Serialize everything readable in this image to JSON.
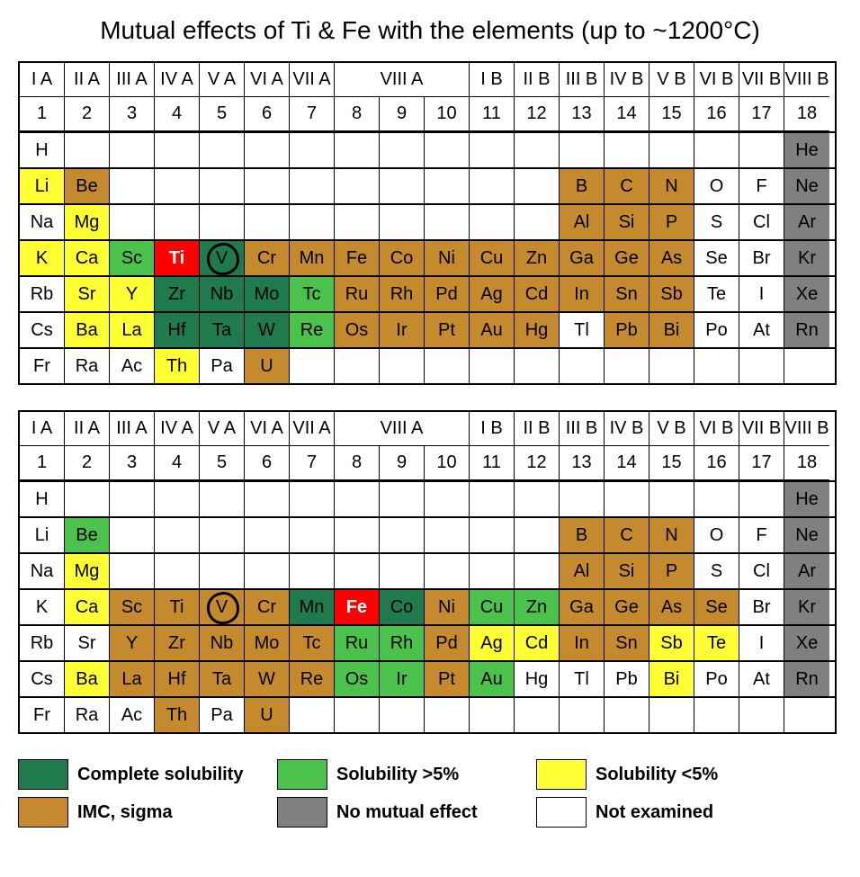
{
  "title": "Mutual effects of Ti & Fe with the elements (up to ~1200°C)",
  "colors": {
    "complete": "#1f7a4d",
    "gt5": "#4bc24b",
    "lt5": "#ffff33",
    "imc": "#c68a2e",
    "none": "#808080",
    "not": "#ffffff",
    "highlight": "#ff0000"
  },
  "group_headers": [
    {
      "label": "I A",
      "span": 1
    },
    {
      "label": "II A",
      "span": 1
    },
    {
      "label": "III A",
      "span": 1
    },
    {
      "label": "IV A",
      "span": 1
    },
    {
      "label": "V A",
      "span": 1
    },
    {
      "label": "VI A",
      "span": 1
    },
    {
      "label": "VII A",
      "span": 1
    },
    {
      "label": "VIII A",
      "span": 3
    },
    {
      "label": "I B",
      "span": 1
    },
    {
      "label": "II B",
      "span": 1
    },
    {
      "label": "III B",
      "span": 1
    },
    {
      "label": "IV B",
      "span": 1
    },
    {
      "label": "V B",
      "span": 1
    },
    {
      "label": "VI B",
      "span": 1
    },
    {
      "label": "VII B",
      "span": 1
    },
    {
      "label": "VIII B",
      "span": 1
    }
  ],
  "group_numbers": [
    "1",
    "2",
    "3",
    "4",
    "5",
    "6",
    "7",
    "8",
    "9",
    "10",
    "11",
    "12",
    "13",
    "14",
    "15",
    "16",
    "17",
    "18"
  ],
  "tables": [
    {
      "name": "ti-table",
      "rows": [
        [
          {
            "s": "H"
          },
          {},
          {},
          {},
          {},
          {},
          {},
          {},
          {},
          {},
          {},
          {},
          {},
          {},
          {},
          {},
          {},
          {
            "s": "He",
            "c": "none"
          }
        ],
        [
          {
            "s": "Li",
            "c": "lt5"
          },
          {
            "s": "Be",
            "c": "imc"
          },
          {},
          {},
          {},
          {},
          {},
          {},
          {},
          {},
          {},
          {},
          {
            "s": "B",
            "c": "imc"
          },
          {
            "s": "C",
            "c": "imc"
          },
          {
            "s": "N",
            "c": "imc"
          },
          {
            "s": "O"
          },
          {
            "s": "F"
          },
          {
            "s": "Ne",
            "c": "none"
          }
        ],
        [
          {
            "s": "Na"
          },
          {
            "s": "Mg",
            "c": "lt5"
          },
          {},
          {},
          {},
          {},
          {},
          {},
          {},
          {},
          {},
          {},
          {
            "s": "Al",
            "c": "imc"
          },
          {
            "s": "Si",
            "c": "imc"
          },
          {
            "s": "P",
            "c": "imc"
          },
          {
            "s": "S"
          },
          {
            "s": "Cl"
          },
          {
            "s": "Ar",
            "c": "none"
          }
        ],
        [
          {
            "s": "K",
            "c": "lt5"
          },
          {
            "s": "Ca",
            "c": "lt5"
          },
          {
            "s": "Sc",
            "c": "gt5"
          },
          {
            "s": "Ti",
            "c": "highlight",
            "hl": true
          },
          {
            "s": "V",
            "c": "complete",
            "circ": true
          },
          {
            "s": "Cr",
            "c": "imc"
          },
          {
            "s": "Mn",
            "c": "imc"
          },
          {
            "s": "Fe",
            "c": "imc"
          },
          {
            "s": "Co",
            "c": "imc"
          },
          {
            "s": "Ni",
            "c": "imc"
          },
          {
            "s": "Cu",
            "c": "imc"
          },
          {
            "s": "Zn",
            "c": "imc"
          },
          {
            "s": "Ga",
            "c": "imc"
          },
          {
            "s": "Ge",
            "c": "imc"
          },
          {
            "s": "As",
            "c": "imc"
          },
          {
            "s": "Se"
          },
          {
            "s": "Br"
          },
          {
            "s": "Kr",
            "c": "none"
          }
        ],
        [
          {
            "s": "Rb"
          },
          {
            "s": "Sr",
            "c": "lt5"
          },
          {
            "s": "Y",
            "c": "lt5"
          },
          {
            "s": "Zr",
            "c": "complete"
          },
          {
            "s": "Nb",
            "c": "complete"
          },
          {
            "s": "Mo",
            "c": "complete"
          },
          {
            "s": "Tc",
            "c": "gt5"
          },
          {
            "s": "Ru",
            "c": "imc"
          },
          {
            "s": "Rh",
            "c": "imc"
          },
          {
            "s": "Pd",
            "c": "imc"
          },
          {
            "s": "Ag",
            "c": "imc"
          },
          {
            "s": "Cd",
            "c": "imc"
          },
          {
            "s": "In",
            "c": "imc"
          },
          {
            "s": "Sn",
            "c": "imc"
          },
          {
            "s": "Sb",
            "c": "imc"
          },
          {
            "s": "Te"
          },
          {
            "s": "I"
          },
          {
            "s": "Xe",
            "c": "none"
          }
        ],
        [
          {
            "s": "Cs"
          },
          {
            "s": "Ba",
            "c": "lt5"
          },
          {
            "s": "La",
            "c": "lt5"
          },
          {
            "s": "Hf",
            "c": "complete"
          },
          {
            "s": "Ta",
            "c": "complete"
          },
          {
            "s": "W",
            "c": "complete"
          },
          {
            "s": "Re",
            "c": "gt5"
          },
          {
            "s": "Os",
            "c": "imc"
          },
          {
            "s": "Ir",
            "c": "imc"
          },
          {
            "s": "Pt",
            "c": "imc"
          },
          {
            "s": "Au",
            "c": "imc"
          },
          {
            "s": "Hg",
            "c": "imc"
          },
          {
            "s": "Tl"
          },
          {
            "s": "Pb",
            "c": "imc"
          },
          {
            "s": "Bi",
            "c": "imc"
          },
          {
            "s": "Po"
          },
          {
            "s": "At"
          },
          {
            "s": "Rn",
            "c": "none"
          }
        ],
        [
          {
            "s": "Fr"
          },
          {
            "s": "Ra"
          },
          {
            "s": "Ac"
          },
          {
            "s": "Th",
            "c": "lt5"
          },
          {
            "s": "Pa"
          },
          {
            "s": "U",
            "c": "imc"
          },
          {},
          {},
          {},
          {},
          {},
          {},
          {},
          {},
          {},
          {},
          {},
          {}
        ]
      ]
    },
    {
      "name": "fe-table",
      "rows": [
        [
          {
            "s": "H"
          },
          {},
          {},
          {},
          {},
          {},
          {},
          {},
          {},
          {},
          {},
          {},
          {},
          {},
          {},
          {},
          {},
          {
            "s": "He",
            "c": "none"
          }
        ],
        [
          {
            "s": "Li"
          },
          {
            "s": "Be",
            "c": "gt5"
          },
          {},
          {},
          {},
          {},
          {},
          {},
          {},
          {},
          {},
          {},
          {
            "s": "B",
            "c": "imc"
          },
          {
            "s": "C",
            "c": "imc"
          },
          {
            "s": "N",
            "c": "imc"
          },
          {
            "s": "O"
          },
          {
            "s": "F"
          },
          {
            "s": "Ne",
            "c": "none"
          }
        ],
        [
          {
            "s": "Na"
          },
          {
            "s": "Mg",
            "c": "lt5"
          },
          {},
          {},
          {},
          {},
          {},
          {},
          {},
          {},
          {},
          {},
          {
            "s": "Al",
            "c": "imc"
          },
          {
            "s": "Si",
            "c": "imc"
          },
          {
            "s": "P",
            "c": "imc"
          },
          {
            "s": "S"
          },
          {
            "s": "Cl"
          },
          {
            "s": "Ar",
            "c": "none"
          }
        ],
        [
          {
            "s": "K"
          },
          {
            "s": "Ca",
            "c": "lt5"
          },
          {
            "s": "Sc",
            "c": "imc"
          },
          {
            "s": "Ti",
            "c": "imc"
          },
          {
            "s": "V",
            "c": "imc",
            "circ": true
          },
          {
            "s": "Cr",
            "c": "imc"
          },
          {
            "s": "Mn",
            "c": "complete"
          },
          {
            "s": "Fe",
            "c": "highlight",
            "hl": true
          },
          {
            "s": "Co",
            "c": "complete"
          },
          {
            "s": "Ni",
            "c": "imc"
          },
          {
            "s": "Cu",
            "c": "gt5"
          },
          {
            "s": "Zn",
            "c": "gt5"
          },
          {
            "s": "Ga",
            "c": "imc"
          },
          {
            "s": "Ge",
            "c": "imc"
          },
          {
            "s": "As",
            "c": "imc"
          },
          {
            "s": "Se",
            "c": "imc"
          },
          {
            "s": "Br"
          },
          {
            "s": "Kr",
            "c": "none"
          }
        ],
        [
          {
            "s": "Rb"
          },
          {
            "s": "Sr"
          },
          {
            "s": "Y",
            "c": "imc"
          },
          {
            "s": "Zr",
            "c": "imc"
          },
          {
            "s": "Nb",
            "c": "imc"
          },
          {
            "s": "Mo",
            "c": "imc"
          },
          {
            "s": "Tc",
            "c": "imc"
          },
          {
            "s": "Ru",
            "c": "gt5"
          },
          {
            "s": "Rh",
            "c": "gt5"
          },
          {
            "s": "Pd",
            "c": "imc"
          },
          {
            "s": "Ag",
            "c": "lt5"
          },
          {
            "s": "Cd",
            "c": "lt5"
          },
          {
            "s": "In",
            "c": "imc"
          },
          {
            "s": "Sn",
            "c": "imc"
          },
          {
            "s": "Sb",
            "c": "lt5"
          },
          {
            "s": "Te",
            "c": "lt5"
          },
          {
            "s": "I"
          },
          {
            "s": "Xe",
            "c": "none"
          }
        ],
        [
          {
            "s": "Cs"
          },
          {
            "s": "Ba",
            "c": "lt5"
          },
          {
            "s": "La",
            "c": "imc"
          },
          {
            "s": "Hf",
            "c": "imc"
          },
          {
            "s": "Ta",
            "c": "imc"
          },
          {
            "s": "W",
            "c": "imc"
          },
          {
            "s": "Re",
            "c": "imc"
          },
          {
            "s": "Os",
            "c": "gt5"
          },
          {
            "s": "Ir",
            "c": "gt5"
          },
          {
            "s": "Pt",
            "c": "imc"
          },
          {
            "s": "Au",
            "c": "gt5"
          },
          {
            "s": "Hg"
          },
          {
            "s": "Tl"
          },
          {
            "s": "Pb"
          },
          {
            "s": "Bi",
            "c": "lt5"
          },
          {
            "s": "Po"
          },
          {
            "s": "At"
          },
          {
            "s": "Rn",
            "c": "none"
          }
        ],
        [
          {
            "s": "Fr"
          },
          {
            "s": "Ra"
          },
          {
            "s": "Ac"
          },
          {
            "s": "Th",
            "c": "imc"
          },
          {
            "s": "Pa"
          },
          {
            "s": "U",
            "c": "imc"
          },
          {},
          {},
          {},
          {},
          {},
          {},
          {},
          {},
          {},
          {},
          {},
          {}
        ]
      ]
    }
  ],
  "legend": [
    {
      "label": "Complete solubility",
      "color": "complete"
    },
    {
      "label": "Solubility >5%",
      "color": "gt5"
    },
    {
      "label": "Solubility <5%",
      "color": "lt5"
    },
    {
      "label": "IMC, sigma",
      "color": "imc"
    },
    {
      "label": "No mutual effect",
      "color": "none"
    },
    {
      "label": "Not examined",
      "color": "not"
    }
  ]
}
